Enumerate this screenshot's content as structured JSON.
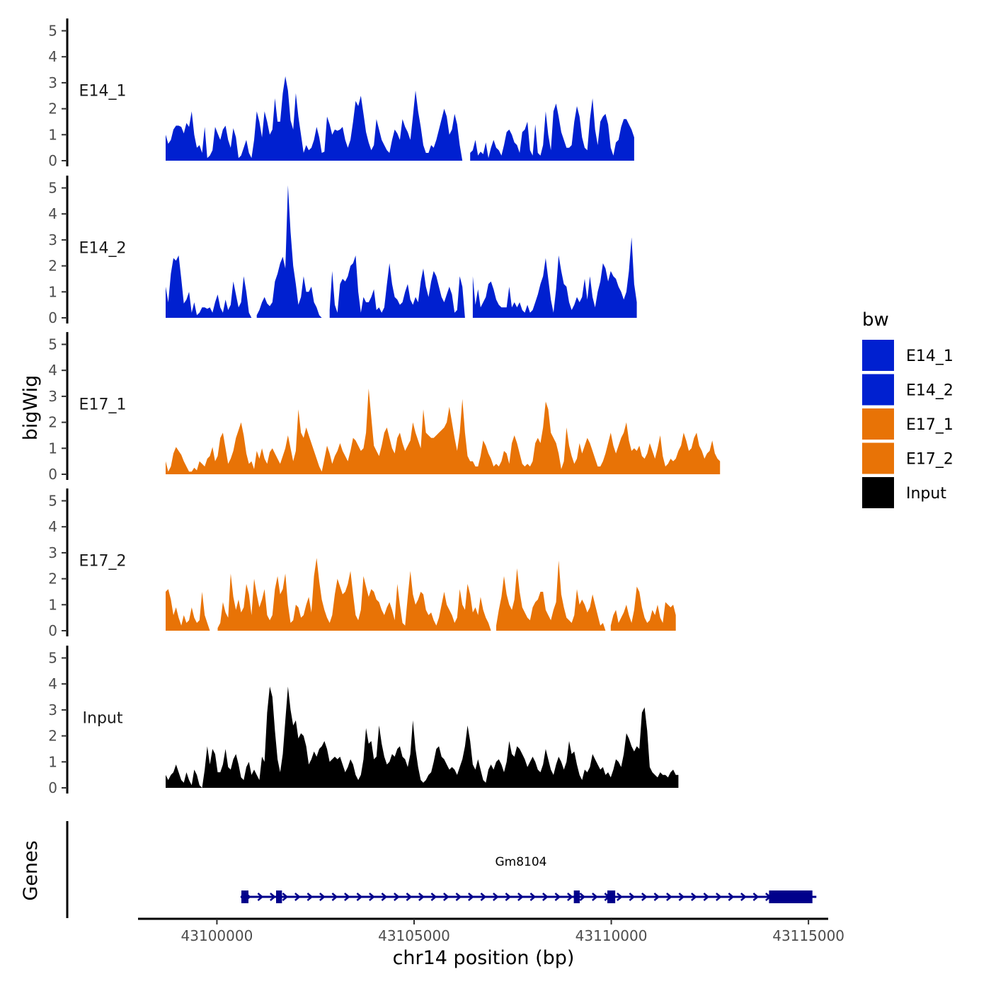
{
  "chart_data": {
    "type": "area",
    "title": "",
    "xlabel": "chr14 position (bp)",
    "ylabel": "bigWig",
    "genes_label": "Genes",
    "xlim": [
      43098000,
      43115500
    ],
    "ylim": [
      0,
      5.2
    ],
    "x_ticks": [
      43100000,
      43105000,
      43110000,
      43115000
    ],
    "x_tick_labels": [
      "43100000",
      "43105000",
      "43110000",
      "43115000"
    ],
    "y_ticks": [
      0,
      1,
      2,
      3,
      4,
      5
    ],
    "y_tick_labels": [
      "0",
      "1",
      "2",
      "3",
      "4",
      "5"
    ],
    "legend": {
      "title": "bw",
      "placement": "right",
      "entries": [
        {
          "label": "E14_1",
          "color": "#0020D0"
        },
        {
          "label": "E14_2",
          "color": "#0020D0"
        },
        {
          "label": "E17_1",
          "color": "#E87306"
        },
        {
          "label": "E17_2",
          "color": "#E87306"
        },
        {
          "label": "Input",
          "color": "#000000"
        }
      ]
    },
    "series": [
      {
        "name": "E14_1",
        "color": "#0020D0",
        "x_start": 43098700,
        "step": 66,
        "values": [
          1.0,
          0.65,
          0.8,
          1.2,
          1.35,
          1.35,
          1.3,
          1.05,
          1.45,
          1.3,
          1.9,
          1.0,
          0.5,
          0.6,
          0.3,
          1.3,
          0.1,
          0.2,
          0.4,
          1.3,
          1.05,
          0.8,
          1.2,
          1.35,
          0.8,
          0.5,
          1.25,
          0.9,
          0.1,
          0.2,
          0.5,
          0.8,
          0.3,
          0.1,
          0.8,
          1.9,
          1.5,
          0.9,
          1.9,
          1.5,
          1.0,
          1.2,
          2.4,
          1.5,
          1.5,
          2.6,
          3.25,
          2.7,
          1.55,
          1.2,
          2.6,
          1.7,
          1.0,
          0.3,
          0.6,
          0.4,
          0.5,
          0.8,
          1.3,
          0.9,
          0.3,
          0.35,
          1.7,
          1.4,
          1.0,
          1.2,
          1.15,
          1.2,
          1.3,
          0.8,
          0.5,
          0.8,
          1.5,
          2.3,
          2.1,
          2.5,
          1.8,
          1.1,
          0.7,
          0.4,
          0.6,
          1.6,
          1.2,
          0.8,
          0.6,
          0.4,
          0.3,
          0.8,
          1.2,
          1.05,
          0.8,
          1.6,
          1.3,
          1.1,
          0.8,
          1.7,
          2.7,
          1.9,
          1.3,
          0.6,
          0.3,
          0.3,
          0.6,
          0.5,
          0.8,
          1.2,
          1.6,
          2.0,
          1.7,
          1.0,
          1.2,
          1.8,
          1.4,
          0.6,
          0.0,
          null,
          null,
          0.3,
          0.4,
          0.8,
          0.2,
          0.35,
          0.25,
          0.7,
          0.1,
          0.5,
          0.8,
          0.5,
          0.4,
          0.2,
          0.6,
          1.1,
          1.2,
          1.0,
          0.7,
          0.6,
          0.3,
          1.1,
          1.2,
          1.5,
          0.4,
          0.2,
          1.4,
          0.3,
          0.2,
          0.6,
          1.9,
          1.0,
          0.4,
          1.9,
          2.2,
          1.7,
          1.1,
          0.8,
          0.5,
          0.5,
          0.6,
          1.5,
          2.1,
          1.7,
          0.9,
          0.5,
          0.4,
          1.6,
          2.4,
          1.2,
          0.6,
          1.5,
          1.7,
          1.8,
          1.4,
          0.5,
          0.2,
          0.7,
          0.8,
          1.3,
          1.6,
          1.6,
          1.4,
          1.2,
          0.9
        ]
      },
      {
        "name": "E14_2",
        "color": "#0020D0",
        "x_start": 43098700,
        "step": 66,
        "values": [
          1.2,
          0.6,
          1.7,
          2.3,
          2.2,
          2.4,
          1.5,
          0.55,
          0.7,
          1.0,
          0.2,
          0.6,
          0.1,
          0.2,
          0.4,
          0.4,
          0.35,
          0.4,
          0.2,
          0.6,
          0.9,
          0.4,
          0.2,
          0.7,
          0.3,
          0.5,
          1.4,
          0.9,
          0.4,
          0.6,
          1.6,
          1.0,
          0.2,
          0.0,
          null,
          0.1,
          0.3,
          0.6,
          0.8,
          0.55,
          0.45,
          0.6,
          1.4,
          1.7,
          2.1,
          2.35,
          1.9,
          5.1,
          3.3,
          2.0,
          1.3,
          0.5,
          0.8,
          1.6,
          1.0,
          1.0,
          1.2,
          0.6,
          0.4,
          0.1,
          0.0,
          null,
          null,
          0.3,
          1.8,
          0.5,
          0.2,
          1.3,
          1.5,
          1.4,
          1.6,
          2.0,
          2.1,
          2.4,
          1.0,
          0.2,
          0.8,
          0.6,
          0.6,
          0.8,
          1.1,
          0.3,
          0.4,
          0.2,
          0.4,
          1.3,
          2.1,
          1.3,
          0.8,
          0.7,
          0.5,
          0.6,
          1.0,
          1.3,
          0.7,
          0.5,
          0.8,
          0.6,
          1.4,
          1.9,
          1.2,
          0.8,
          1.4,
          1.8,
          1.6,
          1.2,
          0.8,
          0.6,
          0.9,
          1.2,
          0.9,
          0.2,
          0.3,
          1.6,
          1.2,
          0.0,
          null,
          null,
          1.6,
          0.5,
          1.1,
          0.4,
          0.6,
          0.8,
          1.3,
          1.4,
          1.1,
          0.7,
          0.5,
          0.4,
          0.4,
          0.4,
          1.2,
          0.4,
          0.6,
          0.4,
          0.6,
          0.3,
          0.2,
          0.5,
          0.2,
          0.3,
          0.6,
          0.9,
          1.3,
          1.6,
          2.3,
          1.5,
          0.7,
          0.2,
          1.1,
          2.4,
          1.8,
          1.3,
          1.2,
          0.6,
          0.3,
          0.5,
          0.8,
          0.6,
          0.8,
          1.5,
          0.7,
          1.6,
          0.8,
          0.4,
          1.0,
          1.4,
          2.1,
          1.9,
          1.4,
          1.8,
          1.6,
          1.5,
          1.2,
          1.0,
          0.7,
          1.0,
          1.8,
          3.1,
          1.3,
          0.6
        ]
      },
      {
        "name": "E17_1",
        "color": "#E87306",
        "x_start": 43098700,
        "step": 66,
        "values": [
          0.5,
          0.1,
          0.3,
          0.8,
          1.05,
          0.9,
          0.75,
          0.5,
          0.3,
          0.1,
          0.1,
          0.25,
          0.15,
          0.5,
          0.4,
          0.3,
          0.6,
          0.7,
          1.05,
          0.5,
          0.7,
          1.4,
          1.6,
          1.0,
          0.4,
          0.6,
          0.9,
          1.4,
          1.7,
          2.0,
          1.5,
          0.8,
          0.4,
          0.5,
          0.2,
          0.9,
          0.6,
          1.0,
          0.6,
          0.4,
          0.85,
          1.0,
          0.8,
          0.6,
          0.4,
          0.7,
          1.0,
          1.5,
          1.0,
          0.5,
          0.9,
          2.5,
          1.6,
          1.4,
          1.8,
          1.5,
          1.2,
          0.9,
          0.6,
          0.3,
          0.1,
          0.6,
          1.1,
          0.8,
          0.4,
          0.7,
          0.9,
          1.2,
          0.9,
          0.7,
          0.5,
          0.9,
          1.4,
          1.3,
          1.1,
          0.9,
          1.0,
          1.6,
          3.3,
          2.2,
          1.1,
          0.9,
          0.7,
          1.1,
          1.6,
          1.8,
          1.4,
          1.0,
          0.8,
          1.4,
          1.6,
          1.2,
          0.9,
          1.1,
          1.3,
          2.0,
          1.6,
          1.3,
          1.0,
          2.5,
          1.6,
          1.5,
          1.4,
          1.4,
          1.5,
          1.6,
          1.7,
          1.8,
          2.0,
          2.6,
          2.0,
          1.4,
          0.9,
          1.6,
          2.9,
          1.6,
          0.7,
          0.5,
          0.5,
          0.3,
          0.3,
          0.7,
          1.3,
          1.1,
          0.8,
          0.6,
          0.3,
          0.4,
          0.3,
          0.5,
          0.9,
          0.8,
          0.4,
          1.2,
          1.5,
          1.2,
          0.8,
          0.4,
          0.3,
          0.4,
          0.3,
          0.5,
          1.2,
          1.4,
          1.2,
          1.8,
          2.8,
          2.5,
          1.6,
          1.4,
          1.2,
          0.8,
          0.2,
          0.5,
          1.8,
          1.1,
          0.7,
          0.4,
          0.6,
          1.2,
          0.8,
          1.1,
          1.4,
          1.2,
          0.9,
          0.6,
          0.3,
          0.3,
          0.5,
          0.8,
          1.2,
          1.6,
          1.1,
          0.8,
          1.1,
          1.4,
          1.6,
          2.0,
          1.3,
          0.9,
          1.0,
          0.9,
          1.1,
          0.7,
          0.6,
          0.8,
          1.2,
          0.9,
          0.6,
          1.0,
          1.5,
          0.7,
          0.3,
          0.4,
          0.6,
          0.5,
          0.6,
          0.9,
          1.1,
          1.6,
          1.3,
          0.9,
          1.0,
          1.4,
          1.6,
          1.1,
          0.9,
          0.6,
          0.8,
          0.9,
          1.3,
          0.8,
          0.6,
          0.5
        ]
      },
      {
        "name": "E17_2",
        "color": "#E87306",
        "x_start": 43098700,
        "step": 66,
        "values": [
          1.5,
          1.6,
          1.2,
          0.6,
          0.9,
          0.5,
          0.2,
          0.6,
          0.3,
          0.4,
          0.9,
          0.5,
          0.3,
          0.4,
          1.5,
          0.6,
          0.3,
          0.0,
          null,
          null,
          0.1,
          0.3,
          1.1,
          0.7,
          0.5,
          2.2,
          1.3,
          0.8,
          1.2,
          0.7,
          0.9,
          1.8,
          1.4,
          0.6,
          2.0,
          1.4,
          0.9,
          1.2,
          1.6,
          0.6,
          0.4,
          0.6,
          1.6,
          2.1,
          1.4,
          1.6,
          2.2,
          1.0,
          0.3,
          0.4,
          1.0,
          0.9,
          0.5,
          0.6,
          1.0,
          1.3,
          0.7,
          2.1,
          2.8,
          1.9,
          1.2,
          0.8,
          0.5,
          0.3,
          0.6,
          1.4,
          2.0,
          1.7,
          1.4,
          1.5,
          1.8,
          2.3,
          1.4,
          0.6,
          0.4,
          0.8,
          2.1,
          1.7,
          1.3,
          1.6,
          1.5,
          1.2,
          1.1,
          0.8,
          0.6,
          0.9,
          1.1,
          0.8,
          0.4,
          1.8,
          1.0,
          0.3,
          0.2,
          1.3,
          2.3,
          1.4,
          1.0,
          1.2,
          1.5,
          1.4,
          0.8,
          0.6,
          0.7,
          0.4,
          0.2,
          0.5,
          1.0,
          1.5,
          1.0,
          0.8,
          0.6,
          0.3,
          0.5,
          1.6,
          1.0,
          0.8,
          1.8,
          1.4,
          0.7,
          0.9,
          0.6,
          1.3,
          0.8,
          0.5,
          0.3,
          0.0,
          null,
          0.2,
          0.8,
          1.3,
          2.1,
          1.4,
          1.0,
          0.8,
          1.2,
          2.4,
          1.5,
          0.9,
          0.7,
          0.5,
          0.4,
          0.9,
          1.1,
          1.2,
          1.5,
          1.5,
          0.8,
          0.6,
          0.4,
          0.8,
          1.1,
          2.7,
          1.4,
          0.9,
          0.5,
          0.4,
          0.3,
          0.6,
          1.6,
          1.0,
          1.2,
          1.0,
          0.7,
          0.9,
          1.4,
          1.0,
          0.6,
          0.2,
          0.3,
          0.0,
          null,
          0.2,
          0.6,
          0.8,
          0.3,
          0.5,
          0.7,
          1.0,
          0.6,
          0.3,
          0.8,
          1.7,
          1.5,
          0.9,
          0.5,
          0.3,
          0.4,
          0.8,
          0.6,
          1.0,
          0.5,
          0.3,
          1.1,
          1.0,
          0.9,
          1.0,
          0.6
        ]
      },
      {
        "name": "Input",
        "color": "#000000",
        "x_start": 43098700,
        "step": 66,
        "values": [
          0.5,
          0.3,
          0.5,
          0.6,
          0.9,
          0.6,
          0.3,
          0.2,
          0.6,
          0.3,
          0.1,
          0.7,
          0.5,
          0.1,
          0.0,
          0.7,
          1.6,
          0.9,
          1.5,
          1.3,
          0.6,
          0.6,
          0.9,
          1.5,
          0.8,
          0.7,
          1.1,
          1.3,
          0.9,
          0.4,
          0.3,
          0.8,
          1.0,
          0.5,
          0.7,
          0.5,
          0.3,
          1.2,
          1.0,
          2.9,
          3.9,
          3.5,
          2.2,
          1.1,
          0.6,
          1.3,
          2.6,
          3.9,
          3.0,
          2.4,
          2.6,
          1.9,
          2.1,
          2.0,
          1.6,
          0.9,
          1.1,
          1.4,
          1.2,
          1.5,
          1.6,
          1.8,
          1.5,
          1.0,
          1.1,
          1.2,
          1.1,
          1.2,
          0.9,
          0.6,
          0.8,
          1.1,
          0.9,
          0.5,
          0.3,
          0.5,
          1.1,
          2.3,
          1.7,
          1.8,
          1.1,
          1.2,
          2.4,
          1.7,
          1.2,
          0.9,
          1.0,
          1.3,
          1.2,
          1.5,
          1.6,
          1.2,
          1.1,
          0.8,
          1.3,
          2.6,
          1.5,
          0.8,
          0.3,
          0.2,
          0.3,
          0.5,
          0.6,
          1.0,
          1.5,
          1.6,
          1.2,
          1.1,
          0.9,
          0.7,
          0.8,
          0.7,
          0.5,
          0.8,
          1.1,
          1.6,
          2.4,
          1.8,
          0.9,
          0.7,
          1.1,
          0.7,
          0.3,
          0.2,
          0.7,
          0.9,
          0.7,
          1.0,
          1.1,
          0.9,
          0.6,
          1.0,
          1.8,
          1.3,
          1.2,
          1.6,
          1.5,
          1.3,
          1.1,
          0.8,
          1.0,
          1.2,
          1.0,
          0.7,
          0.6,
          0.9,
          1.5,
          1.1,
          0.7,
          0.5,
          0.9,
          1.2,
          1.0,
          0.7,
          1.0,
          1.8,
          1.3,
          1.4,
          0.9,
          0.5,
          0.3,
          0.7,
          0.6,
          0.8,
          1.3,
          1.1,
          0.9,
          0.7,
          0.8,
          0.5,
          0.6,
          0.4,
          0.7,
          1.1,
          1.0,
          0.8,
          1.3,
          2.1,
          1.9,
          1.6,
          1.4,
          1.6,
          1.5,
          2.9,
          3.1,
          2.2,
          0.8,
          0.6,
          0.5,
          0.4,
          0.6,
          0.5,
          0.5,
          0.4,
          0.6,
          0.7,
          0.5,
          0.5
        ]
      }
    ],
    "genes": [
      {
        "name": "Gm8104",
        "color": "#00008B",
        "strand": "+",
        "start": 43100600,
        "end": 43115200,
        "exons": [
          {
            "start": 43100620,
            "end": 43100800
          },
          {
            "start": 43101500,
            "end": 43101650
          },
          {
            "start": 43109050,
            "end": 43109200
          },
          {
            "start": 43109900,
            "end": 43110100
          },
          {
            "start": 43114000,
            "end": 43115100
          }
        ]
      }
    ]
  }
}
